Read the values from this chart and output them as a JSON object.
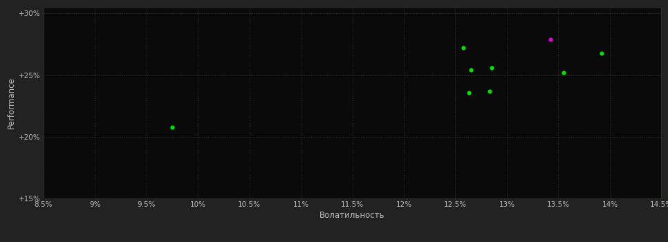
{
  "background_color": "#222222",
  "plot_bg_color": "#0a0a0a",
  "xlabel": "Волатильность",
  "ylabel": "Performance",
  "xlim": [
    0.085,
    0.145
  ],
  "ylim": [
    0.15,
    0.305
  ],
  "xticks": [
    0.085,
    0.09,
    0.095,
    0.1,
    0.105,
    0.11,
    0.115,
    0.12,
    0.125,
    0.13,
    0.135,
    0.14,
    0.145
  ],
  "yticks": [
    0.15,
    0.2,
    0.25,
    0.3
  ],
  "ytick_labels": [
    "+15%",
    "+20%",
    "+25%",
    "+30%"
  ],
  "green_points": [
    [
      0.0975,
      0.208
    ],
    [
      0.1258,
      0.272
    ],
    [
      0.1265,
      0.254
    ],
    [
      0.1285,
      0.256
    ],
    [
      0.1263,
      0.236
    ],
    [
      0.1283,
      0.237
    ],
    [
      0.1355,
      0.252
    ],
    [
      0.1392,
      0.268
    ]
  ],
  "magenta_points": [
    [
      0.1342,
      0.279
    ]
  ],
  "dot_size": 20,
  "green_color": "#00dd00",
  "magenta_color": "#dd00dd",
  "tick_color": "#bbbbbb",
  "grid_color": "#2a3a2a",
  "tick_fontsize": 7.5,
  "label_fontsize": 8.5
}
